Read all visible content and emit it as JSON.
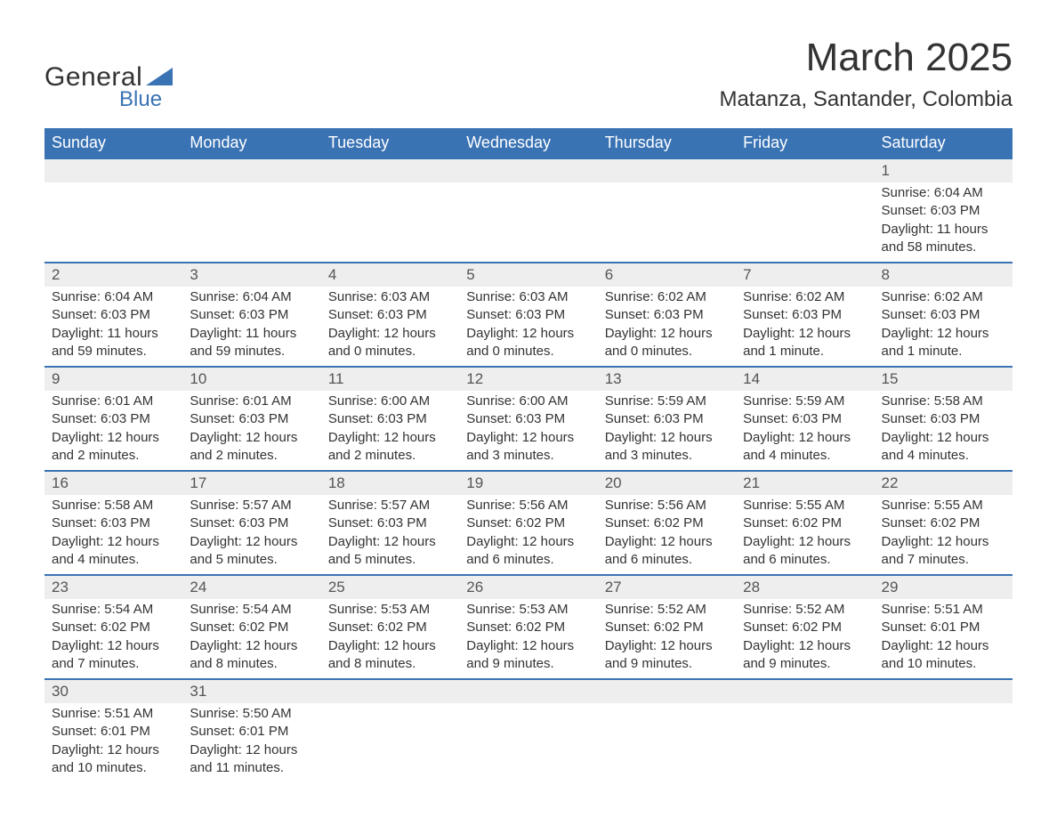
{
  "logo": {
    "general": "General",
    "blue": "Blue",
    "accent_color": "#3a73b4"
  },
  "title": "March 2025",
  "location": "Matanza, Santander, Colombia",
  "colors": {
    "header_bg": "#3a73b4",
    "header_text": "#ffffff",
    "daynum_bg": "#eeeeee",
    "row_border": "#3a73b4",
    "text": "#333333"
  },
  "typography": {
    "title_fontsize": 44,
    "location_fontsize": 24,
    "header_fontsize": 18,
    "cell_fontsize": 15
  },
  "day_headers": [
    "Sunday",
    "Monday",
    "Tuesday",
    "Wednesday",
    "Thursday",
    "Friday",
    "Saturday"
  ],
  "weeks": [
    [
      null,
      null,
      null,
      null,
      null,
      null,
      {
        "n": "1",
        "sunrise": "Sunrise: 6:04 AM",
        "sunset": "Sunset: 6:03 PM",
        "daylight": "Daylight: 11 hours and 58 minutes."
      }
    ],
    [
      {
        "n": "2",
        "sunrise": "Sunrise: 6:04 AM",
        "sunset": "Sunset: 6:03 PM",
        "daylight": "Daylight: 11 hours and 59 minutes."
      },
      {
        "n": "3",
        "sunrise": "Sunrise: 6:04 AM",
        "sunset": "Sunset: 6:03 PM",
        "daylight": "Daylight: 11 hours and 59 minutes."
      },
      {
        "n": "4",
        "sunrise": "Sunrise: 6:03 AM",
        "sunset": "Sunset: 6:03 PM",
        "daylight": "Daylight: 12 hours and 0 minutes."
      },
      {
        "n": "5",
        "sunrise": "Sunrise: 6:03 AM",
        "sunset": "Sunset: 6:03 PM",
        "daylight": "Daylight: 12 hours and 0 minutes."
      },
      {
        "n": "6",
        "sunrise": "Sunrise: 6:02 AM",
        "sunset": "Sunset: 6:03 PM",
        "daylight": "Daylight: 12 hours and 0 minutes."
      },
      {
        "n": "7",
        "sunrise": "Sunrise: 6:02 AM",
        "sunset": "Sunset: 6:03 PM",
        "daylight": "Daylight: 12 hours and 1 minute."
      },
      {
        "n": "8",
        "sunrise": "Sunrise: 6:02 AM",
        "sunset": "Sunset: 6:03 PM",
        "daylight": "Daylight: 12 hours and 1 minute."
      }
    ],
    [
      {
        "n": "9",
        "sunrise": "Sunrise: 6:01 AM",
        "sunset": "Sunset: 6:03 PM",
        "daylight": "Daylight: 12 hours and 2 minutes."
      },
      {
        "n": "10",
        "sunrise": "Sunrise: 6:01 AM",
        "sunset": "Sunset: 6:03 PM",
        "daylight": "Daylight: 12 hours and 2 minutes."
      },
      {
        "n": "11",
        "sunrise": "Sunrise: 6:00 AM",
        "sunset": "Sunset: 6:03 PM",
        "daylight": "Daylight: 12 hours and 2 minutes."
      },
      {
        "n": "12",
        "sunrise": "Sunrise: 6:00 AM",
        "sunset": "Sunset: 6:03 PM",
        "daylight": "Daylight: 12 hours and 3 minutes."
      },
      {
        "n": "13",
        "sunrise": "Sunrise: 5:59 AM",
        "sunset": "Sunset: 6:03 PM",
        "daylight": "Daylight: 12 hours and 3 minutes."
      },
      {
        "n": "14",
        "sunrise": "Sunrise: 5:59 AM",
        "sunset": "Sunset: 6:03 PM",
        "daylight": "Daylight: 12 hours and 4 minutes."
      },
      {
        "n": "15",
        "sunrise": "Sunrise: 5:58 AM",
        "sunset": "Sunset: 6:03 PM",
        "daylight": "Daylight: 12 hours and 4 minutes."
      }
    ],
    [
      {
        "n": "16",
        "sunrise": "Sunrise: 5:58 AM",
        "sunset": "Sunset: 6:03 PM",
        "daylight": "Daylight: 12 hours and 4 minutes."
      },
      {
        "n": "17",
        "sunrise": "Sunrise: 5:57 AM",
        "sunset": "Sunset: 6:03 PM",
        "daylight": "Daylight: 12 hours and 5 minutes."
      },
      {
        "n": "18",
        "sunrise": "Sunrise: 5:57 AM",
        "sunset": "Sunset: 6:03 PM",
        "daylight": "Daylight: 12 hours and 5 minutes."
      },
      {
        "n": "19",
        "sunrise": "Sunrise: 5:56 AM",
        "sunset": "Sunset: 6:02 PM",
        "daylight": "Daylight: 12 hours and 6 minutes."
      },
      {
        "n": "20",
        "sunrise": "Sunrise: 5:56 AM",
        "sunset": "Sunset: 6:02 PM",
        "daylight": "Daylight: 12 hours and 6 minutes."
      },
      {
        "n": "21",
        "sunrise": "Sunrise: 5:55 AM",
        "sunset": "Sunset: 6:02 PM",
        "daylight": "Daylight: 12 hours and 6 minutes."
      },
      {
        "n": "22",
        "sunrise": "Sunrise: 5:55 AM",
        "sunset": "Sunset: 6:02 PM",
        "daylight": "Daylight: 12 hours and 7 minutes."
      }
    ],
    [
      {
        "n": "23",
        "sunrise": "Sunrise: 5:54 AM",
        "sunset": "Sunset: 6:02 PM",
        "daylight": "Daylight: 12 hours and 7 minutes."
      },
      {
        "n": "24",
        "sunrise": "Sunrise: 5:54 AM",
        "sunset": "Sunset: 6:02 PM",
        "daylight": "Daylight: 12 hours and 8 minutes."
      },
      {
        "n": "25",
        "sunrise": "Sunrise: 5:53 AM",
        "sunset": "Sunset: 6:02 PM",
        "daylight": "Daylight: 12 hours and 8 minutes."
      },
      {
        "n": "26",
        "sunrise": "Sunrise: 5:53 AM",
        "sunset": "Sunset: 6:02 PM",
        "daylight": "Daylight: 12 hours and 9 minutes."
      },
      {
        "n": "27",
        "sunrise": "Sunrise: 5:52 AM",
        "sunset": "Sunset: 6:02 PM",
        "daylight": "Daylight: 12 hours and 9 minutes."
      },
      {
        "n": "28",
        "sunrise": "Sunrise: 5:52 AM",
        "sunset": "Sunset: 6:02 PM",
        "daylight": "Daylight: 12 hours and 9 minutes."
      },
      {
        "n": "29",
        "sunrise": "Sunrise: 5:51 AM",
        "sunset": "Sunset: 6:01 PM",
        "daylight": "Daylight: 12 hours and 10 minutes."
      }
    ],
    [
      {
        "n": "30",
        "sunrise": "Sunrise: 5:51 AM",
        "sunset": "Sunset: 6:01 PM",
        "daylight": "Daylight: 12 hours and 10 minutes."
      },
      {
        "n": "31",
        "sunrise": "Sunrise: 5:50 AM",
        "sunset": "Sunset: 6:01 PM",
        "daylight": "Daylight: 12 hours and 11 minutes."
      },
      null,
      null,
      null,
      null,
      null
    ]
  ]
}
